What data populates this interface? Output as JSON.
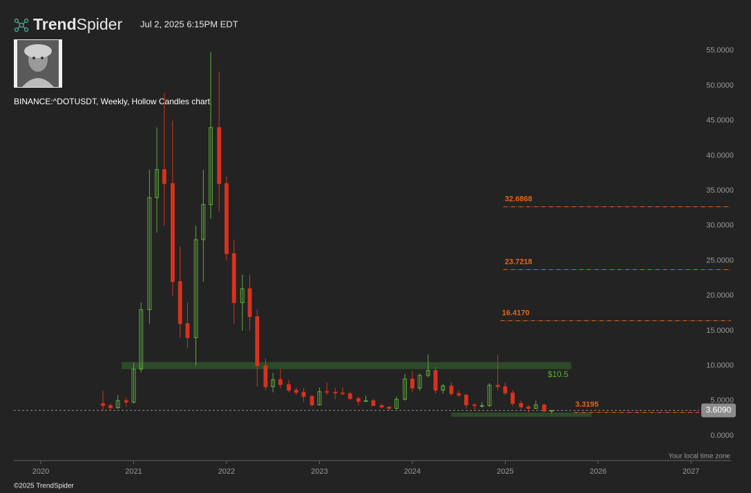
{
  "header": {
    "logo": {
      "bold": "Trend",
      "light": "Spider"
    },
    "timestamp": "Jul 2, 2025 6:15PM EDT"
  },
  "footer": {
    "timezone": "Your local time zone",
    "copyright": "©2025 TrendSpider"
  },
  "chart_data": {
    "type": "candlestick",
    "title": "BINANCE:^DOTUSDT, Weekly, Hollow Candles chart",
    "xlim": [
      2019.71,
      2027.43
    ],
    "xticks": [
      2020,
      2021,
      2022,
      2023,
      2024,
      2025,
      2026,
      2027
    ],
    "ylim": [
      -3.55,
      56.8
    ],
    "yticks": [
      {
        "value": 0,
        "label": "0.0000"
      },
      {
        "value": 5,
        "label": "5.0000"
      },
      {
        "value": 10,
        "label": "10.0000"
      },
      {
        "value": 15,
        "label": "15.0000"
      },
      {
        "value": 20,
        "label": "20.0000"
      },
      {
        "value": 25,
        "label": "25.0000"
      },
      {
        "value": 30,
        "label": "30.0000"
      },
      {
        "value": 35,
        "label": "35.0000"
      },
      {
        "value": 40,
        "label": "40.0000"
      },
      {
        "value": 45,
        "label": "45.0000"
      },
      {
        "value": 50,
        "label": "50.0000"
      },
      {
        "value": 55,
        "label": "55.0000"
      }
    ],
    "up_color": "#5fae3c",
    "down_color": "#d8321e",
    "series": [
      {
        "x": [
          2020.67,
          2020.75,
          2020.83,
          2020.92,
          2021.0,
          2021.08,
          2021.17,
          2021.25,
          2021.33,
          2021.42,
          2021.5,
          2021.58,
          2021.67,
          2021.75,
          2021.83,
          2021.92,
          2022.0,
          2022.08,
          2022.17,
          2022.25,
          2022.33,
          2022.42,
          2022.5,
          2022.58,
          2022.67,
          2022.75,
          2022.83,
          2022.92,
          2023.0,
          2023.08,
          2023.17,
          2023.25,
          2023.33,
          2023.42,
          2023.5,
          2023.58,
          2023.67,
          2023.75,
          2023.83,
          2023.92,
          2024.0,
          2024.08,
          2024.17,
          2024.25,
          2024.33,
          2024.42,
          2024.5,
          2024.58,
          2024.67,
          2024.75,
          2024.83,
          2024.92,
          2025.0,
          2025.08,
          2025.17,
          2025.25,
          2025.33,
          2025.42,
          2025.5
        ],
        "open": [
          4.6,
          4.3,
          4.0,
          5.0,
          4.8,
          9.5,
          18,
          34,
          38,
          36,
          22,
          16,
          14,
          28,
          33,
          44,
          36,
          26,
          19,
          21,
          17,
          10,
          7,
          8,
          7.3,
          6.5,
          6.2,
          5.6,
          4.4,
          6.3,
          6.2,
          6.1,
          6.0,
          5.3,
          4.9,
          5.0,
          4.3,
          4.1,
          3.9,
          5.2,
          8.1,
          6.8,
          8.6,
          9.3,
          6.5,
          7.1,
          6.0,
          5.8,
          4.4,
          4.3,
          4.3,
          7.2,
          7.0,
          6.1,
          4.6,
          4.1,
          3.9,
          4.4,
          3.5
        ],
        "high": [
          6.4,
          4.6,
          5.8,
          5.4,
          10.5,
          19,
          38,
          44,
          49,
          45,
          27,
          19,
          30,
          38,
          54.8,
          52,
          37,
          28,
          23,
          23,
          18,
          11,
          9,
          9.5,
          8,
          6.9,
          6.8,
          5.8,
          6.9,
          7.6,
          6.8,
          6.9,
          6.3,
          5.6,
          5.7,
          5.3,
          4.6,
          4.2,
          5.6,
          8.8,
          9.2,
          8.9,
          11.6,
          9.8,
          7.4,
          7.6,
          6.5,
          5.9,
          4.7,
          4.8,
          7.5,
          11.5,
          7.6,
          6.5,
          5.0,
          4.4,
          5.0,
          4.6,
          3.7
        ],
        "low": [
          3.5,
          3.6,
          3.8,
          4.1,
          4.6,
          9,
          16,
          29,
          30,
          20,
          14,
          12.5,
          10,
          22,
          31,
          32,
          25,
          16,
          15,
          15,
          7,
          6.5,
          6.2,
          6.8,
          6.2,
          5.8,
          4.8,
          4.2,
          4.3,
          5.8,
          5.2,
          5.8,
          5.1,
          4.3,
          4.8,
          4.2,
          3.9,
          3.6,
          3.8,
          5.0,
          6.2,
          6.4,
          8.3,
          6.0,
          6.0,
          5.7,
          5.5,
          3.9,
          3.7,
          4.0,
          4.1,
          6.5,
          5.8,
          4.2,
          3.6,
          3.3,
          3.8,
          3.4,
          3.2
        ],
        "close": [
          4.3,
          4.0,
          5.0,
          4.8,
          9.5,
          18,
          34,
          38,
          36,
          22,
          16,
          14,
          28,
          33,
          44,
          36,
          26,
          19,
          21,
          17,
          10,
          7,
          8,
          7.3,
          6.5,
          6.2,
          5.6,
          4.4,
          6.3,
          6.2,
          6.1,
          6.0,
          5.3,
          4.9,
          5.0,
          4.3,
          4.1,
          3.9,
          5.2,
          8.1,
          6.8,
          8.6,
          9.3,
          6.5,
          7.1,
          6.0,
          5.8,
          4.4,
          4.3,
          4.3,
          7.2,
          7.0,
          6.1,
          4.6,
          4.1,
          3.9,
          4.4,
          3.5,
          3.609
        ]
      }
    ],
    "levels": [
      {
        "value": 32.6868,
        "label": "32.6868",
        "start": 2024.98
      },
      {
        "value": 23.7218,
        "label": "23.7218",
        "start": 2024.98
      },
      {
        "value": 16.417,
        "label": "16.4170",
        "start": 2024.95
      },
      {
        "value": 3.3195,
        "label": "3.3195",
        "start": 2025.74
      }
    ],
    "level_color": "#e8651a",
    "zones": [
      {
        "low": 9.5,
        "high": 10.5,
        "start": 2020.87,
        "end": 2025.71,
        "label": "$10.5"
      },
      {
        "low": 2.7,
        "high": 3.3,
        "start": 2024.42,
        "end": 2025.93
      }
    ],
    "zone_color": "#2f4f2a",
    "last_price": {
      "value": 3.609,
      "label": "3.6090"
    }
  }
}
